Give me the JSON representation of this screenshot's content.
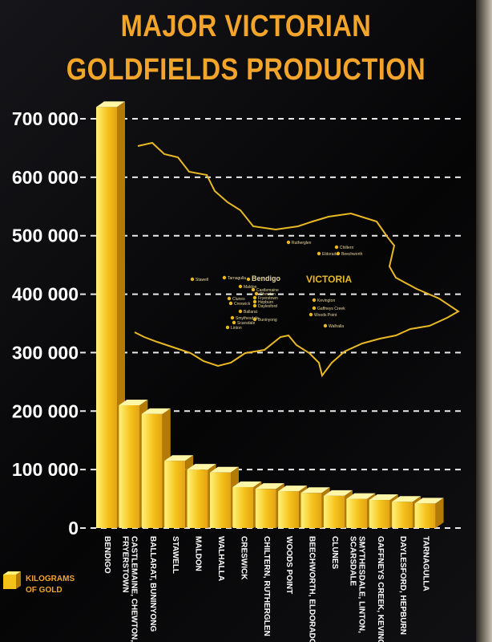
{
  "chart_data": {
    "type": "bar",
    "title": "MAJOR VICTORIAN GOLDFIELDS PRODUCTION",
    "title_lines": [
      "MAJOR VICTORIAN",
      "GOLDFIELDS PRODUCTION"
    ],
    "legend": [
      "KILOGRAMS",
      "OF GOLD"
    ],
    "ylim": [
      0,
      700000
    ],
    "yticks": [
      0,
      100000,
      200000,
      300000,
      400000,
      500000,
      600000,
      700000
    ],
    "ytick_labels": [
      "0",
      "100 000",
      "200 000",
      "300 000",
      "400 000",
      "500 000",
      "600 000",
      "700 000"
    ],
    "grid": true,
    "categories": [
      "BENDIGO",
      "CASTLEMAINE, CHEWTON, FRYERSTOWN",
      "BALLARAT, BUNINYONG",
      "STAWELL",
      "MALDON",
      "WALHALLA",
      "CRESWICK",
      "CHILTERN, RUTHERGLEN",
      "WOODS POINT",
      "BEECHWORTH, ELDORADO",
      "CLUNES",
      "SMYTHESDALE, LINTON, SCARSDALE",
      "GAFFNEYS CREEK, KEVINGTON",
      "DAYLESFORD, HEPBURN",
      "TARNAGULLA"
    ],
    "values": [
      720000,
      210000,
      195000,
      115000,
      100000,
      95000,
      70000,
      67000,
      63000,
      60000,
      55000,
      50000,
      48000,
      45000,
      42000
    ],
    "colors": {
      "bar_light": "#fff27a",
      "bar_mid": "#f5c21a",
      "bar_dark": "#b47a08",
      "title": "#f2a52a",
      "map_line": "#e8b825"
    }
  },
  "map": {
    "label": "VICTORIA",
    "towns": [
      "Rutherglen",
      "Chiltern",
      "Eldorado",
      "Beechworth",
      "Stawell",
      "Tarnagulla",
      "Bendigo",
      "Maldon",
      "Castlemaine",
      "Chewton",
      "Fryerstown",
      "Clunes",
      "Creswick",
      "Hepburn",
      "Daylesford",
      "Ballarat",
      "Smythesdale",
      "Scarsdale",
      "Buninyong",
      "Linton",
      "Kevington",
      "Gaffneys Creek",
      "Woods Point",
      "Walhalla"
    ]
  }
}
